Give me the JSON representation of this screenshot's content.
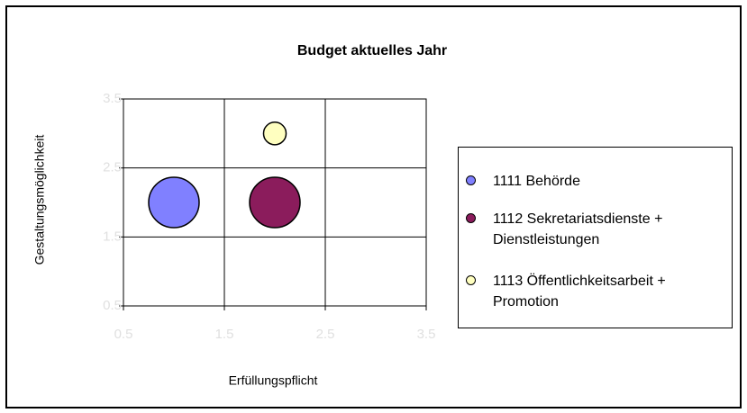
{
  "chart_data": {
    "type": "bubble",
    "title": "Budget aktuelles Jahr",
    "x_label": "Erfüllungspflicht",
    "y_label": "Gestaltungsmöglichkeit",
    "xlim": [
      0.5,
      3.5
    ],
    "xticks": [
      0.5,
      1.5,
      2.5,
      3.5
    ],
    "ylim": [
      0.5,
      3.5
    ],
    "yticks": [
      0.5,
      1.5,
      2.5,
      3.5
    ],
    "grid": true,
    "legend": "right",
    "series": [
      {
        "name": "1111 Behörde",
        "color": "#8080ff",
        "x": [
          1
        ],
        "values": [
          2
        ],
        "sizes": [
          5
        ]
      },
      {
        "name": "1112 Sekretariatsdienste + Dienstleistungen",
        "color": "#8b1c5c",
        "x": [
          2
        ],
        "values": [
          2
        ],
        "sizes": [
          5
        ]
      },
      {
        "name": "1113 Öffentlichkeitsarbeit + Promotion",
        "color": "#ffffc0",
        "x": [
          2
        ],
        "values": [
          3
        ],
        "sizes": [
          1
        ]
      }
    ]
  }
}
